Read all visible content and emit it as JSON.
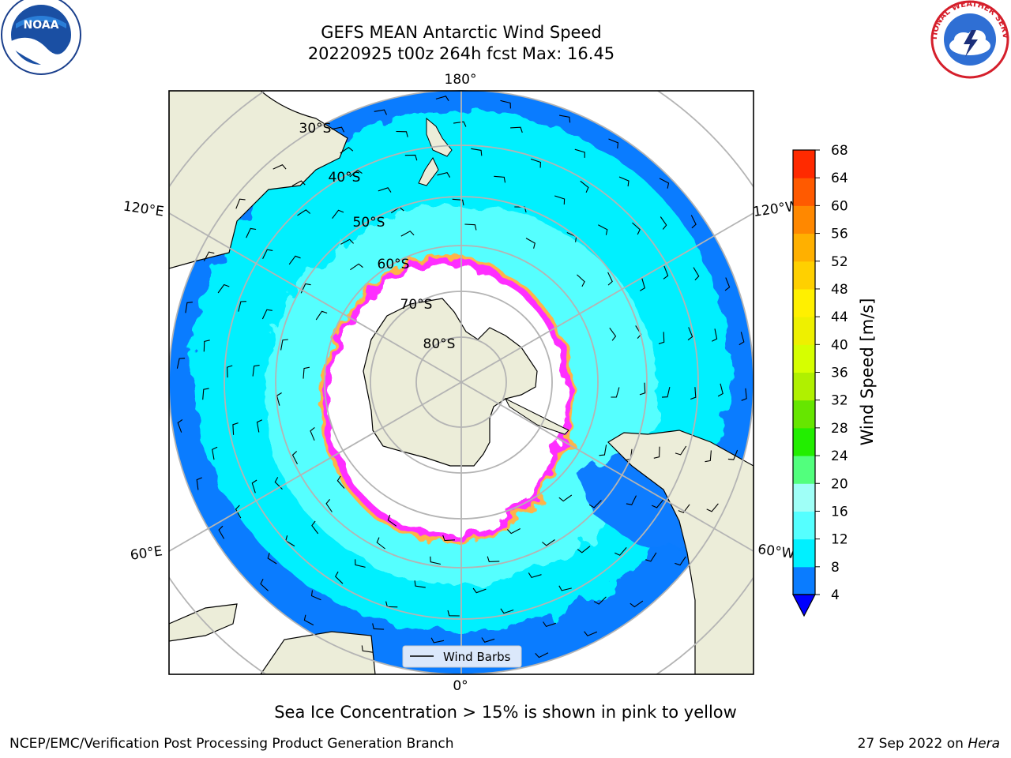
{
  "title": {
    "line1": "GEFS MEAN Antarctic Wind Speed",
    "line2": "20220925 t00z 264h fcst   Max: 16.45"
  },
  "map": {
    "projection": "south-polar-stereographic",
    "longitude_labels": {
      "top": "180°",
      "bottom": "0°",
      "upper_left": "120°E",
      "upper_right": "120°W",
      "lower_left": "60°E",
      "lower_right": "60°W"
    },
    "latitude_labels": [
      "30°S",
      "40°S",
      "50°S",
      "60°S",
      "70°S",
      "80°S"
    ],
    "legend_label": "Wind Barbs",
    "colors": {
      "land": "#ecedd9",
      "ocean_4_8": "#0a7cff",
      "ocean_8_12": "#00f0ff",
      "ocean_12_16": "#55ffff",
      "ice_edge": "#ff2fff",
      "ice_edge_yellow": "#ffb347",
      "grid": "#b4b4b4"
    }
  },
  "colorbar": {
    "label": "Wind Speed [m/s]",
    "ticks": [
      "4",
      "8",
      "12",
      "16",
      "20",
      "24",
      "28",
      "32",
      "36",
      "40",
      "44",
      "48",
      "52",
      "56",
      "60",
      "64",
      "68"
    ],
    "colors": [
      "#0a7cff",
      "#00f0ff",
      "#55ffff",
      "#9ffff7",
      "#52ff7d",
      "#22ee00",
      "#66e600",
      "#b0f000",
      "#d6ff00",
      "#eef000",
      "#fff000",
      "#ffd000",
      "#ffb000",
      "#ff8800",
      "#ff5a00",
      "#ff2a00"
    ],
    "extend_color": "#0000ff"
  },
  "subtitle": "Sea Ice Concentration > 15% is shown in pink to yellow",
  "footer": {
    "left": "NCEP/EMC/Verification Post Processing Product Generation Branch",
    "right_date": "27 Sep 2022 on ",
    "right_host": "Hera"
  },
  "logos": {
    "left": "NOAA",
    "right": "NATIONAL WEATHER SERVICE"
  }
}
